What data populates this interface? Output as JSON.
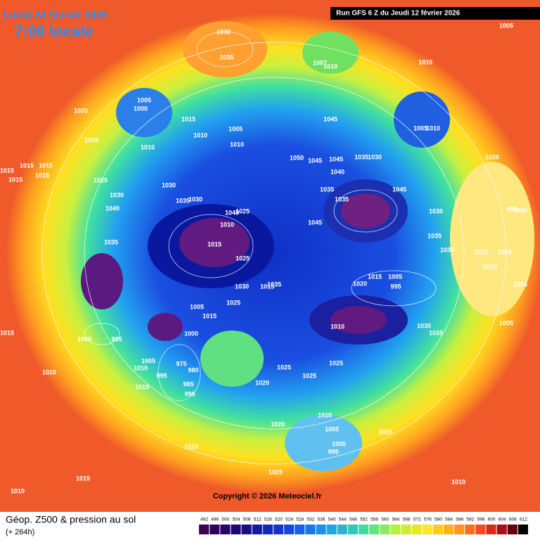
{
  "header": {
    "date": "Lundi 23 février 2026",
    "time": "7:00 locale",
    "run": "Run GFS 6 Z du Jeudi 12 février 2026"
  },
  "footer": {
    "title": "Géop. Z500 & pression au sol",
    "lead": "(+ 264h)",
    "copyright": "Copyright © 2026 Meteociel.fr"
  },
  "legend": {
    "values": [
      492,
      496,
      500,
      504,
      508,
      512,
      516,
      520,
      524,
      528,
      532,
      536,
      540,
      544,
      548,
      552,
      556,
      560,
      564,
      568,
      572,
      576,
      580,
      584,
      588,
      592,
      596,
      600,
      604,
      608,
      612
    ]
  },
  "isobar_labels": [
    "1030",
    "1035",
    "1007",
    "1010",
    "1010",
    "1005",
    "1005",
    "1000",
    "1020",
    "1015",
    "1010",
    "1005",
    "1010",
    "1045",
    "1005",
    "1010",
    "1020",
    "1010",
    "1050",
    "1045",
    "1045",
    "1035",
    "1030",
    "1020",
    "1015",
    "1015",
    "1015",
    "1015",
    "1015",
    "1025",
    "1030",
    "1040",
    "1035",
    "1045",
    "1030",
    "1040",
    "1030",
    "1035",
    "1035",
    "1030",
    "1000",
    "995",
    "1040",
    "1025",
    "1010",
    "1045",
    "1035",
    "1015",
    "1035",
    "1030",
    "1015",
    "1000",
    "1025",
    "1010",
    "1005",
    "1015",
    "1005",
    "1020",
    "995",
    "1030",
    "1015",
    "1035",
    "1025",
    "1005",
    "1015",
    "1000",
    "1010",
    "1030",
    "1035",
    "1005",
    "1015",
    "1000",
    "995",
    "1005",
    "1010",
    "1025",
    "1025",
    "1025",
    "995",
    "980",
    "975",
    "985",
    "990",
    "1020",
    "1015",
    "1020",
    "1010",
    "1020",
    "1005",
    "1015",
    "1000",
    "995",
    "1020",
    "1025",
    "1015",
    "1010",
    "1010"
  ]
}
